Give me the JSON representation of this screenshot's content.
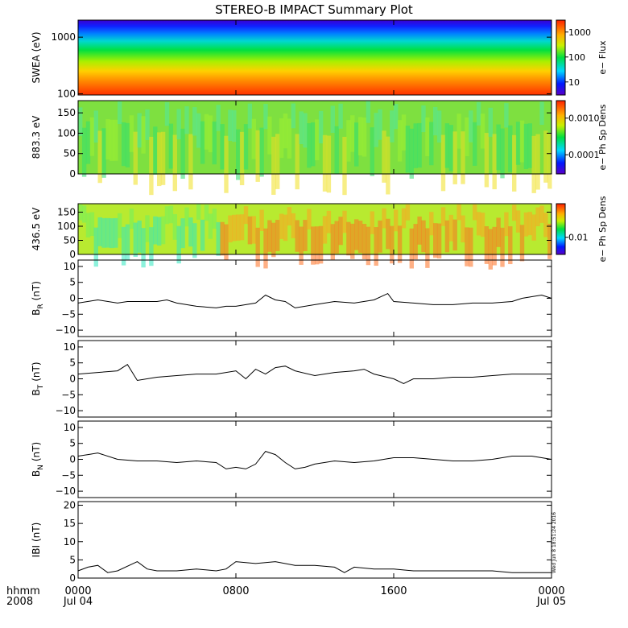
{
  "title": "STEREO-B IMPACT Summary Plot",
  "time_label_line1": "hhmm",
  "time_label_line2": "2008",
  "stamp": "Wed Jun  8 18:51:24 2016",
  "colors": {
    "axis": "#000000",
    "background": "#ffffff"
  },
  "chart_data": [
    {
      "type": "heatmap",
      "ylabel": "SWEA (eV)",
      "yscale": "log",
      "ylim": [
        95,
        2000
      ],
      "yticks": [
        "1000",
        "100"
      ],
      "ytick_values": [
        1000,
        100
      ],
      "colorbar": {
        "label": "e− Flux",
        "scale": "log",
        "ticks": [
          "1000",
          "100",
          "10"
        ],
        "tick_values": [
          1000,
          100,
          10
        ],
        "range": [
          3,
          3000
        ]
      }
    },
    {
      "type": "heatmap",
      "ylabel": "883.3 eV",
      "ylim": [
        0,
        180
      ],
      "yticks": [
        "150",
        "100",
        "50",
        "0"
      ],
      "ytick_values": [
        150,
        100,
        50,
        0
      ],
      "colorbar": {
        "label": "e− Ph Sp Dens",
        "scale": "log",
        "ticks": [
          "0.0010",
          "0.0001"
        ],
        "tick_values": [
          0.001,
          0.0001
        ],
        "range": [
          3e-05,
          0.003
        ]
      }
    },
    {
      "type": "heatmap",
      "ylabel": "436.5 eV",
      "ylim": [
        0,
        180
      ],
      "yticks": [
        "150",
        "100",
        "50",
        "0"
      ],
      "ytick_values": [
        150,
        100,
        50,
        0
      ],
      "colorbar": {
        "label": "e− Ph Sp Dens",
        "scale": "log",
        "ticks": [
          "0.01"
        ],
        "tick_values": [
          0.01
        ],
        "range": [
          0.004,
          0.06
        ]
      }
    },
    {
      "type": "line",
      "ylabel_main": "B",
      "ylabel_sub": "R",
      "ylabel_unit": "(nT)",
      "ylim": [
        -12,
        12
      ],
      "yticks": [
        "10",
        "5",
        "0",
        "−5",
        "−10"
      ],
      "ytick_values": [
        10,
        5,
        0,
        -5,
        -10
      ],
      "x": [
        0,
        1,
        2,
        2.5,
        3,
        4,
        4.5,
        5,
        6,
        7,
        7.5,
        8,
        9,
        9.5,
        10,
        10.5,
        11,
        12,
        13,
        14,
        15,
        15.7,
        16,
        17,
        18,
        19,
        20,
        21,
        22,
        22.5,
        23,
        23.5,
        24
      ],
      "y": [
        -1.5,
        -0.5,
        -1.5,
        -1,
        -1,
        -1,
        -0.5,
        -1.5,
        -2.5,
        -3,
        -2.5,
        -2.5,
        -1.5,
        1,
        -0.5,
        -1,
        -3,
        -2,
        -1,
        -1.5,
        -0.5,
        1.5,
        -1,
        -1.5,
        -2,
        -2,
        -1.5,
        -1.5,
        -1,
        0,
        0.5,
        1,
        0
      ]
    },
    {
      "type": "line",
      "ylabel_main": "B",
      "ylabel_sub": "T",
      "ylabel_unit": "(nT)",
      "ylim": [
        -12,
        12
      ],
      "yticks": [
        "10",
        "5",
        "0",
        "−5",
        "−10"
      ],
      "ytick_values": [
        10,
        5,
        0,
        -5,
        -10
      ],
      "x": [
        0,
        1,
        2,
        2.5,
        3,
        4,
        5,
        6,
        7,
        8,
        8.5,
        9,
        9.5,
        10,
        10.5,
        11,
        12,
        13,
        14,
        14.5,
        15,
        16,
        16.5,
        17,
        18,
        19,
        20,
        21,
        22,
        23,
        24
      ],
      "y": [
        1.5,
        2,
        2.5,
        4.5,
        -0.5,
        0.5,
        1,
        1.5,
        1.5,
        2.5,
        0,
        3,
        1.5,
        3.5,
        4,
        2.5,
        1,
        2,
        2.5,
        3,
        1.5,
        0,
        -1.5,
        0,
        0,
        0.5,
        0.5,
        1,
        1.5,
        1.5,
        1.5
      ]
    },
    {
      "type": "line",
      "ylabel_main": "B",
      "ylabel_sub": "N",
      "ylabel_unit": "(nT)",
      "ylim": [
        -12,
        12
      ],
      "yticks": [
        "10",
        "5",
        "0",
        "−5",
        "−10"
      ],
      "ytick_values": [
        10,
        5,
        0,
        -5,
        -10
      ],
      "x": [
        0,
        0.5,
        1,
        2,
        3,
        4,
        5,
        6,
        7,
        7.5,
        8,
        8.5,
        9,
        9.5,
        10,
        10.5,
        11,
        11.5,
        12,
        13,
        14,
        15,
        16,
        17,
        18,
        19,
        20,
        21,
        22,
        23,
        24
      ],
      "y": [
        1,
        1.5,
        2,
        0,
        -0.5,
        -0.5,
        -1,
        -0.5,
        -1,
        -3,
        -2.5,
        -3,
        -1.5,
        2.5,
        1.5,
        -1,
        -3,
        -2.5,
        -1.5,
        -0.5,
        -1,
        -0.5,
        0.5,
        0.5,
        0,
        -0.5,
        -0.5,
        0,
        1,
        1,
        0
      ]
    },
    {
      "type": "line",
      "ylabel_main": "IBI",
      "ylabel_unit": "(nT)",
      "ylim": [
        0,
        21
      ],
      "yticks": [
        "20",
        "15",
        "10",
        "5",
        "0"
      ],
      "ytick_values": [
        20,
        15,
        10,
        5,
        0
      ],
      "x": [
        0,
        0.5,
        1,
        1.5,
        2,
        3,
        3.5,
        4,
        5,
        6,
        7,
        7.5,
        8,
        9,
        10,
        11,
        12,
        13,
        13.5,
        14,
        15,
        16,
        17,
        18,
        19,
        20,
        21,
        22,
        23,
        24
      ],
      "y": [
        2,
        3,
        3.5,
        1.5,
        2,
        4.5,
        2.5,
        2,
        2,
        2.5,
        2,
        2.5,
        4.5,
        4,
        4.5,
        3.5,
        3.5,
        3,
        1.5,
        3,
        2.5,
        2.5,
        2,
        2,
        2,
        2,
        2,
        1.5,
        1.5,
        1.5
      ]
    }
  ],
  "x_axis": {
    "xlim": [
      0,
      24
    ],
    "ticks": [
      {
        "value": 0,
        "label": "0000",
        "date": "Jul 04"
      },
      {
        "value": 8,
        "label": "0800",
        "date": ""
      },
      {
        "value": 16,
        "label": "1600",
        "date": ""
      },
      {
        "value": 24,
        "label": "0000",
        "date": "Jul 05"
      }
    ]
  }
}
